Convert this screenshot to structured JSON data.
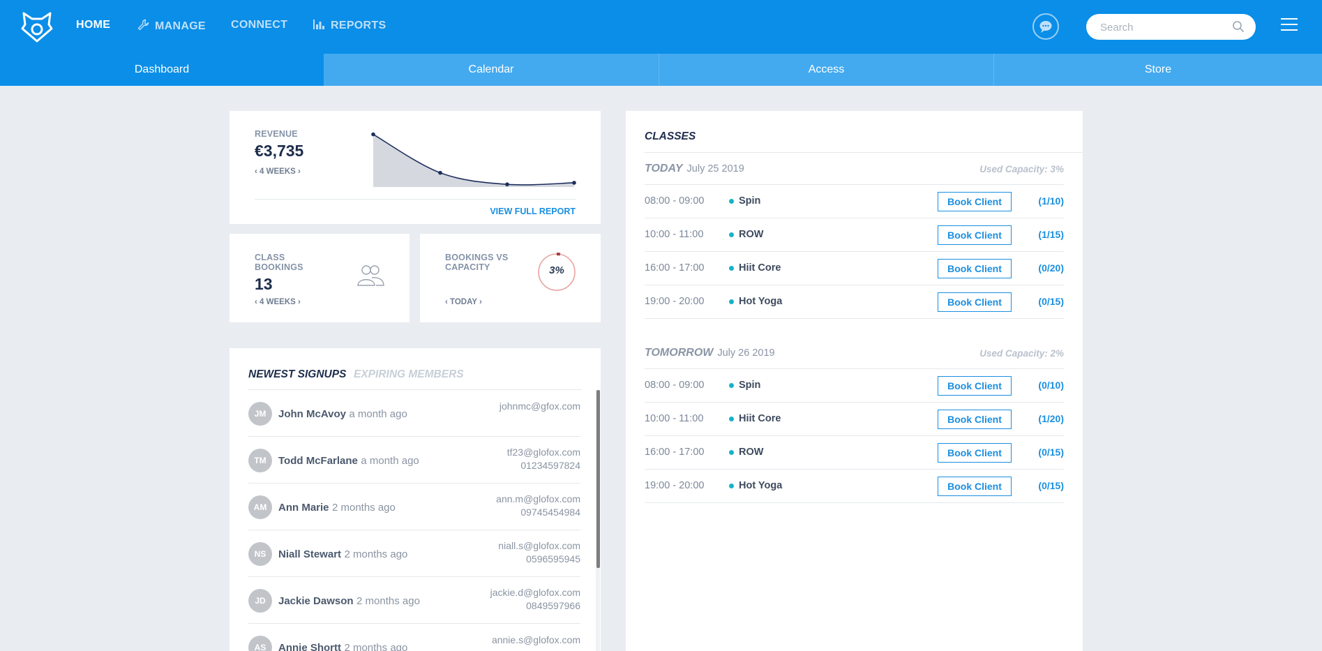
{
  "header": {
    "nav": [
      {
        "label": "HOME",
        "active": true
      },
      {
        "label": "MANAGE",
        "icon": "wrench-icon"
      },
      {
        "label": "CONNECT"
      },
      {
        "label": "REPORTS",
        "icon": "bar-chart-icon"
      }
    ],
    "search_placeholder": "Search"
  },
  "tabs": [
    "Dashboard",
    "Calendar",
    "Access",
    "Store"
  ],
  "revenue": {
    "label": "REVENUE",
    "value": "€3,735",
    "period": "4 WEEKS",
    "link": "VIEW FULL REPORT",
    "chart_data": {
      "type": "area",
      "x": [
        1,
        2,
        3,
        4
      ],
      "values": [
        100,
        27,
        5,
        8
      ],
      "xlabel": "",
      "ylabel": ""
    }
  },
  "class_bookings": {
    "label_line1": "CLASS",
    "label_line2": "BOOKINGS",
    "value": "13",
    "period": "4 WEEKS"
  },
  "bookings_vs_capacity": {
    "label_line1": "BOOKINGS VS",
    "label_line2": "CAPACITY",
    "value": "3%",
    "percent": 3,
    "period": "TODAY"
  },
  "signups": {
    "tab_active": "NEWEST SIGNUPS",
    "tab_inactive": "EXPIRING MEMBERS",
    "items": [
      {
        "initials": "JM",
        "name": "John McAvoy",
        "time": "a month ago",
        "email": "johnmc@gfox.com",
        "phone": ""
      },
      {
        "initials": "TM",
        "name": "Todd McFarlane",
        "time": "a month ago",
        "email": "tf23@glofox.com",
        "phone": "01234597824"
      },
      {
        "initials": "AM",
        "name": "Ann Marie",
        "time": "2 months ago",
        "email": "ann.m@glofox.com",
        "phone": "09745454984"
      },
      {
        "initials": "NS",
        "name": "Niall Stewart",
        "time": "2 months ago",
        "email": "niall.s@glofox.com",
        "phone": "0596595945"
      },
      {
        "initials": "JD",
        "name": "Jackie Dawson",
        "time": "2 months ago",
        "email": "jackie.d@glofox.com",
        "phone": "0849597966"
      },
      {
        "initials": "AS",
        "name": "Annie Shortt",
        "time": "2 months ago",
        "email": "annie.s@glofox.com",
        "phone": ""
      }
    ]
  },
  "classes": {
    "title": "CLASSES",
    "book_label": "Book Client",
    "days": [
      {
        "name": "TODAY",
        "date": "July 25 2019",
        "used_capacity": "Used Capacity: 3%",
        "items": [
          {
            "time": "08:00 - 09:00",
            "name": "Spin",
            "capacity": "(1/10)"
          },
          {
            "time": "10:00 - 11:00",
            "name": "ROW",
            "capacity": "(1/15)"
          },
          {
            "time": "16:00 - 17:00",
            "name": "Hiit Core",
            "capacity": "(0/20)"
          },
          {
            "time": "19:00 - 20:00",
            "name": "Hot Yoga",
            "capacity": "(0/15)"
          }
        ]
      },
      {
        "name": "TOMORROW",
        "date": "July 26 2019",
        "used_capacity": "Used Capacity: 2%",
        "items": [
          {
            "time": "08:00 - 09:00",
            "name": "Spin",
            "capacity": "(0/10)"
          },
          {
            "time": "10:00 - 11:00",
            "name": "Hiit Core",
            "capacity": "(1/20)"
          },
          {
            "time": "16:00 - 17:00",
            "name": "ROW",
            "capacity": "(0/15)"
          },
          {
            "time": "19:00 - 20:00",
            "name": "Hot Yoga",
            "capacity": "(0/15)"
          }
        ]
      }
    ]
  },
  "colors": {
    "brand": "#0a8ee8",
    "tab_bar": "#43aaf0",
    "accent_link": "#1a8fe0",
    "class_dot": "#17b2c7",
    "capacity_ring": "#e57373"
  }
}
